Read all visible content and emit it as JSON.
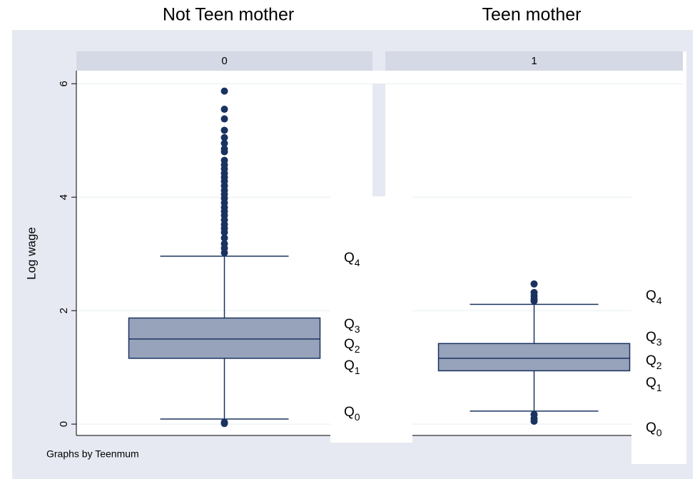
{
  "chart_data": {
    "type": "box",
    "ylabel": "Log wage",
    "note": "Graphs by Teenmum",
    "ylim": [
      -0.2,
      6.23
    ],
    "yticks": [
      0,
      2,
      4,
      6
    ],
    "grid": true,
    "box_color": "#97a2bb",
    "line_color": "#1a3260",
    "panels": [
      {
        "title": "Not Teen mother",
        "header": "0",
        "whisker_low": 0.09,
        "q1": 1.16,
        "median": 1.5,
        "q3": 1.87,
        "whisker_high": 2.96,
        "outliers": [
          5.87,
          5.55,
          5.38,
          5.18,
          5.05,
          4.95,
          4.85,
          4.8,
          4.65,
          4.57,
          4.5,
          4.42,
          4.35,
          4.28,
          4.2,
          4.12,
          4.05,
          3.98,
          3.9,
          3.82,
          3.75,
          3.68,
          3.6,
          3.52,
          3.45,
          3.38,
          3.28,
          3.18,
          3.1,
          3.02,
          0.03,
          0.01
        ],
        "annotations": [
          {
            "text": "Q",
            "sub": "4"
          },
          {
            "text": "Q",
            "sub": "3"
          },
          {
            "text": "Q",
            "sub": "2"
          },
          {
            "text": "Q",
            "sub": "1"
          },
          {
            "text": "Q",
            "sub": "0"
          }
        ]
      },
      {
        "title": "Teen mother",
        "header": "1",
        "whisker_low": 0.23,
        "q1": 0.94,
        "median": 1.16,
        "q3": 1.42,
        "whisker_high": 2.11,
        "outliers": [
          2.47,
          2.32,
          2.26,
          2.2,
          2.17,
          0.17,
          0.1,
          0.05
        ],
        "annotations": [
          {
            "text": "Q",
            "sub": "4"
          },
          {
            "text": "Q",
            "sub": "3"
          },
          {
            "text": "Q",
            "sub": "2"
          },
          {
            "text": "Q",
            "sub": "1"
          },
          {
            "text": "Q",
            "sub": "0"
          }
        ]
      }
    ]
  }
}
